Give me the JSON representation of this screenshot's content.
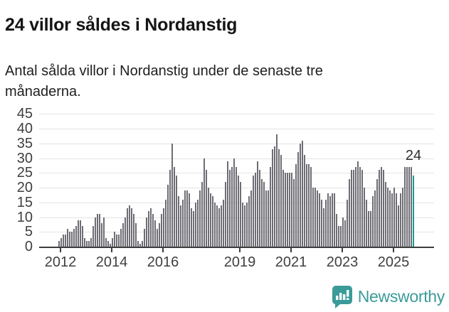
{
  "header": {
    "title": "24 villor såldes i Nordanstig",
    "subtitle": "Antal sålda villor i Nordanstig under de senaste tre månaderna."
  },
  "chart_data": {
    "type": "bar",
    "title": "24 villor såldes i Nordanstig",
    "ylabel": "",
    "xlabel": "",
    "ylim": [
      0,
      45
    ],
    "grid": true,
    "y_ticks": [
      0,
      5,
      10,
      15,
      20,
      25,
      30,
      35,
      40,
      45
    ],
    "x_ticks": [
      {
        "label": "2012",
        "year": 2012
      },
      {
        "label": "2014",
        "year": 2014
      },
      {
        "label": "2016",
        "year": 2016
      },
      {
        "label": "2019",
        "year": 2019
      },
      {
        "label": "2021",
        "year": 2021
      },
      {
        "label": "2023",
        "year": 2023
      },
      {
        "label": "2025",
        "year": 2025
      }
    ],
    "start_month": "2011-12",
    "end_month": "2025-10",
    "values": [
      2,
      3,
      4,
      4,
      6,
      5,
      5,
      6,
      7,
      9,
      9,
      7,
      3,
      2,
      2,
      3,
      7,
      10,
      11,
      11,
      8,
      10,
      3,
      2,
      1,
      3,
      5,
      4,
      4,
      6,
      8,
      10,
      13,
      14,
      13,
      11,
      8,
      2,
      1,
      2,
      6,
      10,
      12,
      13,
      11,
      9,
      6,
      8,
      11,
      13,
      16,
      21,
      26,
      35,
      27,
      24,
      17,
      14,
      16,
      19,
      19,
      18,
      13,
      12,
      15,
      16,
      19,
      22,
      30,
      26,
      20,
      18,
      17,
      15,
      14,
      13,
      14,
      16,
      22,
      29,
      26,
      27,
      30,
      27,
      24,
      22,
      15,
      14,
      15,
      17,
      19,
      24,
      25,
      29,
      26,
      23,
      22,
      19,
      19,
      27,
      33,
      34,
      38,
      33,
      31,
      26,
      25,
      25,
      25,
      25,
      23,
      28,
      32,
      35,
      36,
      31,
      28,
      28,
      27,
      20,
      20,
      19,
      18,
      16,
      13,
      16,
      18,
      17,
      18,
      18,
      11,
      7,
      7,
      10,
      9,
      16,
      23,
      26,
      26,
      27,
      29,
      27,
      26,
      20,
      16,
      12,
      12,
      17,
      19,
      23,
      26,
      27,
      26,
      22,
      20,
      19,
      18,
      20,
      18,
      14,
      18,
      20,
      27,
      27,
      27,
      27,
      24
    ],
    "highlight_last": true,
    "last_value_label": "24",
    "bar_color": "#6e6d74",
    "highlight_color": "#199a9a",
    "grid_color": "#e4e4e4",
    "axis_color": "#3d3d3d"
  },
  "footer": {
    "brand": "Newsworthy",
    "brand_color": "#3a9b99",
    "logo_icon": "bar-chart-speech-bubble-icon"
  }
}
